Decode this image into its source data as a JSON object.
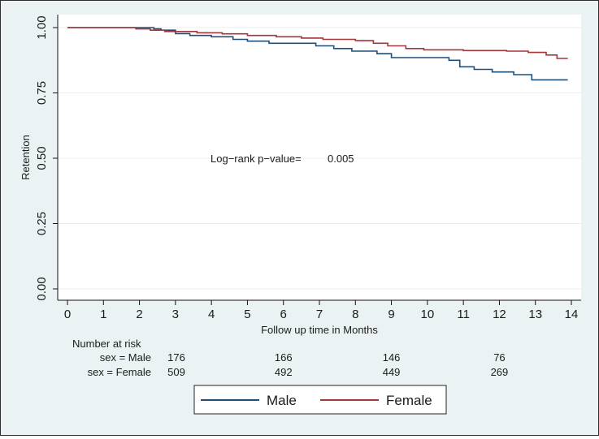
{
  "chart_data": {
    "type": "line",
    "subtype": "kaplan-meier-step",
    "title": "",
    "xlabel": "Follow up time in Months",
    "ylabel": "Retention",
    "xlim": [
      0,
      14
    ],
    "ylim": [
      0,
      1
    ],
    "xticks": [
      0,
      1,
      2,
      3,
      4,
      5,
      6,
      7,
      8,
      9,
      10,
      11,
      12,
      13,
      14
    ],
    "xtick_labels": [
      "0",
      "1",
      "2",
      "3",
      "4",
      "5",
      "6",
      "7",
      "8",
      "9",
      "10",
      "11",
      "12",
      "13",
      "14"
    ],
    "yticks": [
      0,
      0.25,
      0.5,
      0.75,
      1
    ],
    "ytick_labels": [
      "0.00",
      "0.25",
      "0.50",
      "0.75",
      "1.00"
    ],
    "grid": "horizontal",
    "annotation": {
      "label": "Log−rank p−value=",
      "value": "0.005"
    },
    "series": [
      {
        "name": "Male",
        "color": "#1f4e79",
        "steps": [
          [
            0,
            1.0
          ],
          [
            2.4,
            0.995
          ],
          [
            2.6,
            0.99
          ],
          [
            3.0,
            0.977
          ],
          [
            3.4,
            0.97
          ],
          [
            4.0,
            0.965
          ],
          [
            4.6,
            0.955
          ],
          [
            5.0,
            0.948
          ],
          [
            5.6,
            0.94
          ],
          [
            6.9,
            0.93
          ],
          [
            7.4,
            0.92
          ],
          [
            7.9,
            0.91
          ],
          [
            8.6,
            0.9
          ],
          [
            9.0,
            0.885
          ],
          [
            10.6,
            0.875
          ],
          [
            10.9,
            0.85
          ],
          [
            11.3,
            0.84
          ],
          [
            11.8,
            0.83
          ],
          [
            12.4,
            0.82
          ],
          [
            12.9,
            0.8
          ],
          [
            13.9,
            0.8
          ]
        ]
      },
      {
        "name": "Female",
        "color": "#a3363b",
        "steps": [
          [
            0,
            1.0
          ],
          [
            1.9,
            0.995
          ],
          [
            2.3,
            0.99
          ],
          [
            2.7,
            0.985
          ],
          [
            3.6,
            0.98
          ],
          [
            4.3,
            0.976
          ],
          [
            5.0,
            0.97
          ],
          [
            5.8,
            0.965
          ],
          [
            6.5,
            0.96
          ],
          [
            7.1,
            0.955
          ],
          [
            8.0,
            0.95
          ],
          [
            8.5,
            0.94
          ],
          [
            8.9,
            0.93
          ],
          [
            9.4,
            0.92
          ],
          [
            9.9,
            0.915
          ],
          [
            11.0,
            0.912
          ],
          [
            12.2,
            0.91
          ],
          [
            12.8,
            0.905
          ],
          [
            13.3,
            0.895
          ],
          [
            13.6,
            0.882
          ],
          [
            13.9,
            0.882
          ]
        ]
      }
    ],
    "risk_table": {
      "header": "Number at risk",
      "times": [
        3,
        6,
        9,
        12
      ],
      "rows": [
        {
          "label": "sex = Male",
          "values": [
            "176",
            "166",
            "146",
            "76"
          ]
        },
        {
          "label": "sex = Female",
          "values": [
            "509",
            "492",
            "449",
            "269"
          ]
        }
      ]
    },
    "legend": {
      "position": "bottom-center",
      "entries": [
        "Male",
        "Female"
      ]
    }
  }
}
